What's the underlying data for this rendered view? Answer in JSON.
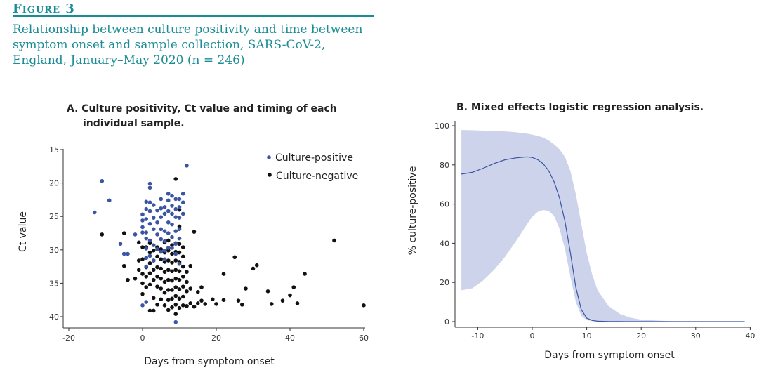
{
  "figure": {
    "label": "Figure 3",
    "caption": "Relationship between culture positivity and time between symptom onset and sample collection, SARS-CoV-2, England, January–May 2020 (n = 246)"
  },
  "colors": {
    "accent": "#1a8c96",
    "positive": "#3b55a3",
    "negative": "#111111",
    "ci_band": "#cdd3ea",
    "curve": "#3b55a3"
  },
  "chart_data": [
    {
      "type": "scatter",
      "title_line1": "A. Culture positivity, Ct value and timing of each",
      "title_line2": "individual sample.",
      "xlabel": "Days from symptom onset",
      "ylabel": "Ct value",
      "xlim": [
        -20,
        60
      ],
      "ylim": [
        15,
        42
      ],
      "y_reversed": true,
      "xticks": [
        "-20",
        "0",
        "20",
        "40",
        "60"
      ],
      "yticks": [
        "15",
        "20",
        "25",
        "30",
        "35",
        "40"
      ],
      "legend_position": "top-right",
      "series": [
        {
          "name": "Culture-positive",
          "points": [
            [
              -13,
              24.4
            ],
            [
              -11,
              19.7
            ],
            [
              -9,
              22.6
            ],
            [
              -6,
              29.1
            ],
            [
              -5,
              30.6
            ],
            [
              -4,
              30.6
            ],
            [
              -2,
              27.7
            ],
            [
              0,
              24.7
            ],
            [
              0,
              25.6
            ],
            [
              0,
              26.6
            ],
            [
              0,
              27.4
            ],
            [
              0,
              38.3
            ],
            [
              1,
              22.8
            ],
            [
              1,
              23.9
            ],
            [
              1,
              25.4
            ],
            [
              1,
              27.4
            ],
            [
              1,
              28.3
            ],
            [
              1,
              29.8
            ],
            [
              1,
              31.2
            ],
            [
              1,
              32.5
            ],
            [
              1,
              37.8
            ],
            [
              2,
              20.1
            ],
            [
              2,
              20.7
            ],
            [
              2,
              22.9
            ],
            [
              2,
              24.2
            ],
            [
              2,
              26.1
            ],
            [
              2,
              28.6
            ],
            [
              2,
              30.9
            ],
            [
              3,
              23.3
            ],
            [
              3,
              25.2
            ],
            [
              3,
              26.9
            ],
            [
              3,
              29.3
            ],
            [
              3,
              31.6
            ],
            [
              4,
              24.1
            ],
            [
              4,
              25.9
            ],
            [
              4,
              27.7
            ],
            [
              4,
              29.9
            ],
            [
              5,
              22.4
            ],
            [
              5,
              23.8
            ],
            [
              5,
              25.1
            ],
            [
              5,
              26.9
            ],
            [
              5,
              28.4
            ],
            [
              5,
              30.3
            ],
            [
              6,
              23.6
            ],
            [
              6,
              24.6
            ],
            [
              6,
              27.2
            ],
            [
              6,
              28.7
            ],
            [
              6,
              30.1
            ],
            [
              6,
              31.4
            ],
            [
              7,
              21.6
            ],
            [
              7,
              22.6
            ],
            [
              7,
              24.2
            ],
            [
              7,
              25.9
            ],
            [
              7,
              27.5
            ],
            [
              7,
              29.7
            ],
            [
              8,
              21.9
            ],
            [
              8,
              23.4
            ],
            [
              8,
              24.6
            ],
            [
              8,
              26.2
            ],
            [
              8,
              28.1
            ],
            [
              8,
              29.7
            ],
            [
              9,
              22.4
            ],
            [
              9,
              23.9
            ],
            [
              9,
              25.1
            ],
            [
              9,
              27.2
            ],
            [
              9,
              29.1
            ],
            [
              9,
              30.6
            ],
            [
              9,
              40.8
            ],
            [
              10,
              22.4
            ],
            [
              10,
              23.6
            ],
            [
              10,
              25.2
            ],
            [
              10,
              26.9
            ],
            [
              10,
              28.3
            ],
            [
              10,
              32.1
            ],
            [
              11,
              21.6
            ],
            [
              11,
              22.9
            ],
            [
              11,
              24.6
            ],
            [
              12,
              17.4
            ]
          ]
        },
        {
          "name": "Culture-negative",
          "points": [
            [
              -11,
              27.7
            ],
            [
              -5,
              27.5
            ],
            [
              -5,
              32.4
            ],
            [
              -4,
              34.5
            ],
            [
              -2,
              34.3
            ],
            [
              -1,
              28.9
            ],
            [
              -1,
              31.6
            ],
            [
              -1,
              33.0
            ],
            [
              0,
              29.6
            ],
            [
              0,
              31.4
            ],
            [
              0,
              33.6
            ],
            [
              0,
              35.0
            ],
            [
              0,
              36.6
            ],
            [
              1,
              29.6
            ],
            [
              1,
              31.2
            ],
            [
              1,
              32.6
            ],
            [
              1,
              34.0
            ],
            [
              1,
              35.6
            ],
            [
              2,
              29.0
            ],
            [
              2,
              30.4
            ],
            [
              2,
              32.0
            ],
            [
              2,
              33.5
            ],
            [
              2,
              35.2
            ],
            [
              2,
              39.1
            ],
            [
              3,
              30.1
            ],
            [
              3,
              31.6
            ],
            [
              3,
              33.0
            ],
            [
              3,
              34.5
            ],
            [
              3,
              37.2
            ],
            [
              3,
              39.1
            ],
            [
              4,
              29.6
            ],
            [
              4,
              31.0
            ],
            [
              4,
              32.6
            ],
            [
              4,
              34.0
            ],
            [
              4,
              35.5
            ],
            [
              4,
              38.2
            ],
            [
              5,
              29.9
            ],
            [
              5,
              31.4
            ],
            [
              5,
              32.8
            ],
            [
              5,
              34.3
            ],
            [
              5,
              35.8
            ],
            [
              5,
              37.4
            ],
            [
              6,
              28.9
            ],
            [
              6,
              30.4
            ],
            [
              6,
              31.8
            ],
            [
              6,
              33.3
            ],
            [
              6,
              34.8
            ],
            [
              6,
              36.4
            ],
            [
              6,
              38.3
            ],
            [
              7,
              28.6
            ],
            [
              7,
              30.1
            ],
            [
              7,
              31.6
            ],
            [
              7,
              33.0
            ],
            [
              7,
              34.5
            ],
            [
              7,
              36.0
            ],
            [
              7,
              37.5
            ],
            [
              7,
              39.0
            ],
            [
              8,
              29.3
            ],
            [
              8,
              30.6
            ],
            [
              8,
              31.9
            ],
            [
              8,
              33.2
            ],
            [
              8,
              34.6
            ],
            [
              8,
              36.0
            ],
            [
              8,
              37.3
            ],
            [
              8,
              38.6
            ],
            [
              9,
              29.0
            ],
            [
              9,
              30.3
            ],
            [
              9,
              31.6
            ],
            [
              9,
              33.0
            ],
            [
              9,
              34.3
            ],
            [
              9,
              35.6
            ],
            [
              9,
              36.9
            ],
            [
              9,
              38.2
            ],
            [
              9,
              39.6
            ],
            [
              9,
              19.4
            ],
            [
              10,
              29.1
            ],
            [
              10,
              30.4
            ],
            [
              10,
              31.8
            ],
            [
              10,
              33.2
            ],
            [
              10,
              34.5
            ],
            [
              10,
              35.9
            ],
            [
              10,
              37.3
            ],
            [
              10,
              38.7
            ],
            [
              10,
              24.0
            ],
            [
              10,
              26.5
            ],
            [
              11,
              29.6
            ],
            [
              11,
              31.0
            ],
            [
              11,
              32.5
            ],
            [
              11,
              34.0
            ],
            [
              11,
              35.5
            ],
            [
              11,
              37.0
            ],
            [
              11,
              38.3
            ],
            [
              12,
              33.3
            ],
            [
              12,
              34.8
            ],
            [
              12,
              36.2
            ],
            [
              12,
              38.4
            ],
            [
              13,
              32.4
            ],
            [
              13,
              35.8
            ],
            [
              13,
              38.0
            ],
            [
              14,
              27.3
            ],
            [
              14,
              38.5
            ],
            [
              15,
              36.3
            ],
            [
              15,
              38.0
            ],
            [
              16,
              35.6
            ],
            [
              16,
              37.6
            ],
            [
              17,
              38.1
            ],
            [
              19,
              37.4
            ],
            [
              20,
              38.1
            ],
            [
              22,
              33.6
            ],
            [
              22,
              37.5
            ],
            [
              25,
              31.1
            ],
            [
              26,
              37.6
            ],
            [
              27,
              38.2
            ],
            [
              28,
              35.8
            ],
            [
              30,
              32.8
            ],
            [
              31,
              32.3
            ],
            [
              34,
              36.2
            ],
            [
              35,
              38.1
            ],
            [
              38,
              37.6
            ],
            [
              40,
              36.8
            ],
            [
              41,
              35.6
            ],
            [
              42,
              38.0
            ],
            [
              44,
              33.6
            ],
            [
              52,
              28.6
            ],
            [
              60,
              38.3
            ]
          ]
        }
      ]
    },
    {
      "type": "area",
      "title": "B. Mixed effects logistic regression analysis.",
      "xlabel": "Days from symptom onset",
      "ylabel": "% culture-positive",
      "xlim": [
        -13,
        40
      ],
      "ylim": [
        0,
        100
      ],
      "xticks": [
        "-10",
        "0",
        "10",
        "20",
        "30",
        "40"
      ],
      "yticks": [
        "0",
        "20",
        "40",
        "60",
        "80",
        "100"
      ],
      "x": [
        -13,
        -11,
        -9,
        -7,
        -5,
        -3,
        -1,
        0,
        1,
        2,
        3,
        4,
        5,
        6,
        7,
        8,
        9,
        10,
        11,
        12,
        14,
        16,
        18,
        20,
        25,
        30,
        35,
        39
      ],
      "series": [
        {
          "name": "estimate",
          "values": [
            75.3,
            76.2,
            78.3,
            80.7,
            82.6,
            83.6,
            84.1,
            83.8,
            82.7,
            80.6,
            77.1,
            71.5,
            63.2,
            51.2,
            35.2,
            17.5,
            6.2,
            1.8,
            0.6,
            0.2,
            0.05,
            0.02,
            0.01,
            0.0,
            0.0,
            0.0,
            0.0,
            0.0
          ]
        },
        {
          "name": "lower",
          "values": [
            16.0,
            17.0,
            21.0,
            26.5,
            33.0,
            41.0,
            49.5,
            53.5,
            56.0,
            57.0,
            56.5,
            54.0,
            47.5,
            37.0,
            23.0,
            10.0,
            3.0,
            0.8,
            0.2,
            0.05,
            0.0,
            0.0,
            0.0,
            0.0,
            0.0,
            0.0,
            0.0,
            0.0
          ]
        },
        {
          "name": "upper",
          "values": [
            97.8,
            97.7,
            97.5,
            97.3,
            97.1,
            96.7,
            96.0,
            95.5,
            94.8,
            94.0,
            92.5,
            90.5,
            88.0,
            84.0,
            77.0,
            65.0,
            50.0,
            35.0,
            24.0,
            16.0,
            8.0,
            4.0,
            2.0,
            1.0,
            0.3,
            0.1,
            0.0,
            0.0
          ]
        }
      ]
    }
  ]
}
